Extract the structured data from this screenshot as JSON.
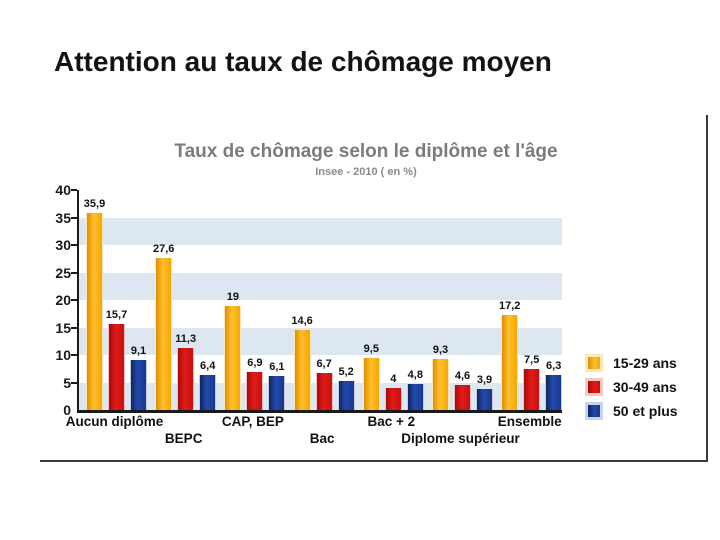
{
  "slide": {
    "title": "Attention au taux de chômage moyen"
  },
  "chart_data": {
    "type": "bar",
    "title": "Taux de chômage selon le diplôme et l'âge",
    "subtitle": "Insee - 2010 ( en %)",
    "categories": [
      "Aucun diplôme",
      "BEPC",
      "CAP, BEP",
      "Bac",
      "Bac + 2",
      "Diplome supérieur",
      "Ensemble"
    ],
    "series": [
      {
        "name": "15-29 ans",
        "color": "#F6A700",
        "color_dark": "#DE8F00",
        "color_light": "#FFBF2D",
        "halo": "#FAE7BC",
        "values": [
          35.9,
          27.6,
          19,
          14.6,
          9.5,
          9.3,
          17.2
        ]
      },
      {
        "name": "30-49 ans",
        "color": "#C8100F",
        "color_dark": "#A30B0C",
        "color_light": "#E01B17",
        "halo": "#F3C9C6",
        "values": [
          15.7,
          11.3,
          6.9,
          6.7,
          4,
          4.6,
          7.5
        ]
      },
      {
        "name": "50 et plus",
        "color": "#17388F",
        "color_dark": "#102560",
        "color_light": "#2349AC",
        "halo": "#C9D4EC",
        "values": [
          9.1,
          6.4,
          6.1,
          5.2,
          4.8,
          3.9,
          6.3
        ]
      }
    ],
    "ylim": [
      0,
      40
    ],
    "ytick_step": 5,
    "yticks": [
      0,
      5,
      10,
      15,
      20,
      25,
      30,
      35,
      40
    ],
    "grid": "alternating horizontal bands",
    "band_ranges": [
      [
        0,
        5
      ],
      [
        10,
        15
      ],
      [
        20,
        25
      ],
      [
        30,
        35
      ]
    ],
    "band_color": "#DDE7F2",
    "legend_position": "right",
    "value_label_decimal_separator": ",",
    "x_label_rows": "staggered"
  }
}
